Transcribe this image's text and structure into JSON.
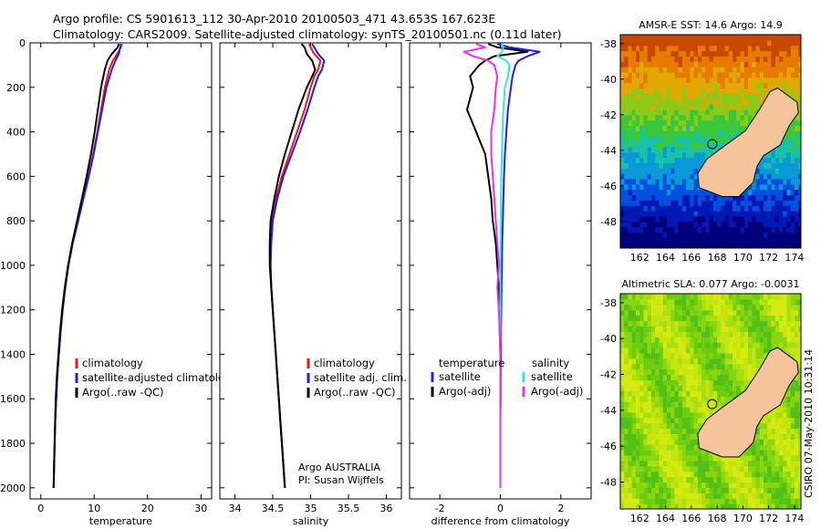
{
  "header": {
    "line1": "Argo profile: CS 5901613_112 30-Apr-2010 20100503_471 43.653S 167.623E",
    "line2": "Climatology: CARS2009. Satellite-adjusted climatology: synTS_20100501.nc (0.11d later)"
  },
  "colors": {
    "climatology": "#e31a1c",
    "satellite": "#1f1fe6",
    "argo": "#000000",
    "satellite_salinity": "#33e6e6",
    "argo_adj_salinity": "#e633e6"
  },
  "chart_data": [
    {
      "type": "line",
      "id": "temperature",
      "xlabel": "temperature",
      "ylabel": "",
      "xlim": [
        -2,
        32
      ],
      "ylim": [
        2050,
        0
      ],
      "xticks": [
        "0",
        "10",
        "20",
        "30"
      ],
      "yticks": [
        "0",
        "200",
        "400",
        "600",
        "800",
        "1000",
        "1200",
        "1400",
        "1600",
        "1800",
        "2000"
      ],
      "legend": [
        "climatology",
        "satellite-adjusted climatology",
        "Argo(..raw -QC)"
      ],
      "depth": [
        5,
        20,
        50,
        80,
        120,
        200,
        300,
        400,
        500,
        600,
        700,
        800,
        900,
        1000,
        1100,
        1200,
        1300,
        1400,
        1500,
        1600,
        1700,
        1800,
        1900,
        2000
      ],
      "series": [
        {
          "name": "climatology",
          "values": [
            15.2,
            15.0,
            14.3,
            13.5,
            12.8,
            12.0,
            11.3,
            10.6,
            9.8,
            8.9,
            7.9,
            6.9,
            5.9,
            5.2,
            4.6,
            4.1,
            3.7,
            3.4,
            3.1,
            2.9,
            2.7,
            2.6,
            2.5,
            2.4
          ]
        },
        {
          "name": "satellite-adjusted climatology",
          "values": [
            15.0,
            14.9,
            14.6,
            14.0,
            13.3,
            12.3,
            11.5,
            10.7,
            9.9,
            9.0,
            8.0,
            7.0,
            6.0,
            5.2,
            4.6,
            4.1,
            3.7,
            3.4,
            3.1,
            2.9,
            2.7,
            2.6,
            2.5,
            2.4
          ]
        },
        {
          "name": "Argo(..raw -QC)",
          "values": [
            14.6,
            14.4,
            13.3,
            12.5,
            12.0,
            11.3,
            10.7,
            10.1,
            9.4,
            8.6,
            7.7,
            6.8,
            5.9,
            5.1,
            4.5,
            4.0,
            3.6,
            3.3,
            3.0,
            2.8,
            2.7,
            2.6,
            2.5,
            2.4
          ]
        }
      ]
    },
    {
      "type": "line",
      "id": "salinity",
      "xlabel": "salinity",
      "ylabel": "",
      "xlim": [
        33.8,
        36.2
      ],
      "ylim": [
        2050,
        0
      ],
      "xticks": [
        "34",
        "34.5",
        "35",
        "35.5",
        "36"
      ],
      "legend": [
        "climatology",
        "satellite adj. clim.",
        "Argo(..raw -QC)"
      ],
      "annotation": [
        "Argo AUSTRALIA",
        "PI: Susan Wijffels"
      ],
      "depth": [
        5,
        20,
        50,
        80,
        120,
        150,
        200,
        300,
        400,
        500,
        600,
        700,
        800,
        900,
        1000,
        1100,
        1200,
        1300,
        1400,
        1500,
        1600,
        1700,
        1800,
        1900,
        2000
      ],
      "series": [
        {
          "name": "climatology",
          "values": [
            34.98,
            35.0,
            35.05,
            35.13,
            35.1,
            35.05,
            35.0,
            34.92,
            34.82,
            34.72,
            34.62,
            34.54,
            34.49,
            34.47,
            34.47,
            34.48,
            34.5,
            34.52,
            34.54,
            34.56,
            34.58,
            34.6,
            34.62,
            34.64,
            34.66
          ]
        },
        {
          "name": "satellite adj. clim.",
          "values": [
            35.02,
            35.05,
            35.1,
            35.18,
            35.15,
            35.1,
            35.05,
            34.96,
            34.86,
            34.75,
            34.64,
            34.56,
            34.5,
            34.48,
            34.47,
            34.48,
            34.5,
            34.52,
            34.54,
            34.56,
            34.58,
            34.6,
            34.62,
            34.64,
            34.66
          ]
        },
        {
          "name": "Argo(..raw -QC)",
          "values": [
            34.88,
            34.92,
            34.95,
            35.02,
            35.06,
            35.02,
            34.95,
            34.84,
            34.75,
            34.66,
            34.58,
            34.52,
            34.47,
            34.46,
            34.46,
            34.48,
            34.5,
            34.52,
            34.54,
            34.56,
            34.58,
            34.6,
            34.62,
            34.64,
            34.66
          ]
        }
      ]
    },
    {
      "type": "line",
      "id": "difference",
      "xlabel": "difference from climatology",
      "ylabel": "",
      "xlim": [
        -3,
        3
      ],
      "ylim": [
        2050,
        0
      ],
      "xticks": [
        "-2",
        "0",
        "2"
      ],
      "legend_temperature": [
        "temperature",
        "satellite",
        "Argo(-adj)"
      ],
      "legend_salinity": [
        "salinity",
        "satellite",
        "Argo(-adj)"
      ],
      "depth": [
        5,
        20,
        40,
        60,
        80,
        100,
        150,
        200,
        300,
        400,
        500,
        600,
        700,
        800,
        900,
        1000,
        1100,
        1200,
        1300,
        1400,
        1500,
        1600,
        1700,
        1800,
        1900,
        2000
      ],
      "series": [
        {
          "name": "temperature satellite",
          "values": [
            -0.1,
            0.3,
            1.3,
            0.9,
            0.6,
            0.5,
            0.4,
            0.35,
            0.25,
            0.2,
            0.15,
            0.12,
            0.1,
            0.08,
            0.06,
            0.05,
            0.04,
            0.03,
            0.02,
            0.02,
            0.01,
            0.01,
            0.0,
            0.0,
            0.0,
            0.0
          ]
        },
        {
          "name": "temperature Argo(-adj)",
          "values": [
            -0.4,
            -0.1,
            0.9,
            -0.2,
            -0.5,
            -0.7,
            -1.0,
            -0.9,
            -1.1,
            -0.8,
            -0.5,
            -0.4,
            -0.3,
            -0.25,
            -0.15,
            -0.1,
            -0.05,
            -0.03,
            -0.02,
            0.0,
            0.0,
            0.0,
            0.0,
            0.0,
            0.0,
            0.0
          ]
        },
        {
          "name": "salinity satellite",
          "values": [
            0.05,
            0.1,
            0.05,
            -0.1,
            0.2,
            0.3,
            0.25,
            0.15,
            0.1,
            0.07,
            0.05,
            0.03,
            0.02,
            0.02,
            0.01,
            0.0,
            0.0,
            0.0,
            0.0,
            0.0,
            0.0,
            0.0,
            0.0,
            0.0,
            0.0,
            0.0
          ]
        },
        {
          "name": "salinity Argo(-adj)",
          "values": [
            -0.8,
            -0.5,
            -1.2,
            -0.9,
            -0.4,
            -0.2,
            -0.1,
            -0.15,
            -0.2,
            -0.3,
            -0.3,
            -0.25,
            -0.2,
            -0.15,
            -0.1,
            -0.05,
            -0.1,
            -0.05,
            -0.02,
            0.0,
            0.0,
            0.0,
            0.0,
            0.0,
            0.0,
            0.0
          ]
        }
      ]
    },
    {
      "type": "heatmap",
      "id": "sst-map",
      "title": "AMSR-E SST: 14.6 Argo: 14.9",
      "xlim": [
        160.5,
        174.5
      ],
      "ylim": [
        -49.5,
        -37.5
      ],
      "xticks": [
        "162",
        "164",
        "166",
        "168",
        "170",
        "172",
        "174"
      ],
      "yticks": [
        "-38",
        "-40",
        "-42",
        "-44",
        "-46",
        "-48"
      ],
      "float_position": {
        "lon": 167.623,
        "lat": -43.653
      }
    },
    {
      "type": "heatmap",
      "id": "sla-map",
      "title": "Altimetric SLA: 0.077 Argo: -0.0031",
      "xlim": [
        160.5,
        174.5
      ],
      "ylim": [
        -49.5,
        -37.5
      ],
      "xticks": [
        "162",
        "164",
        "166",
        "168",
        "170",
        "172",
        "174"
      ],
      "yticks": [
        "-38",
        "-40",
        "-42",
        "-44",
        "-46",
        "-48"
      ],
      "float_position": {
        "lon": 167.623,
        "lat": -43.653
      }
    }
  ],
  "footer_stamp": "CSIRO 07-May-2010 10:31:14"
}
